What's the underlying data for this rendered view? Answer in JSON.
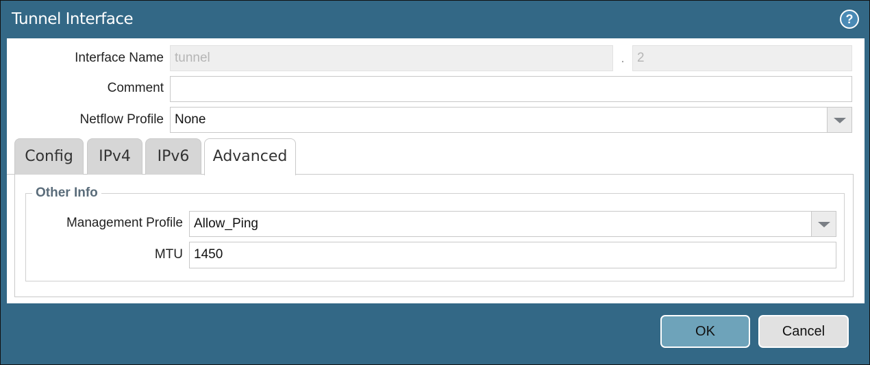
{
  "header": {
    "title": "Tunnel Interface",
    "help": "?"
  },
  "fields": {
    "interface_name": {
      "label": "Interface Name",
      "value": "tunnel",
      "separator": ".",
      "suffix": "2"
    },
    "comment": {
      "label": "Comment"
    },
    "netflow_profile": {
      "label": "Netflow Profile",
      "value": "None"
    }
  },
  "tabs": [
    "Config",
    "IPv4",
    "IPv6",
    "Advanced"
  ],
  "other_info": {
    "legend": "Other Info",
    "management_profile": {
      "label": "Management Profile",
      "value": "Allow_Ping"
    },
    "mtu": {
      "label": "MTU",
      "value": "1450"
    }
  },
  "buttons": {
    "ok": "OK",
    "cancel": "Cancel"
  }
}
